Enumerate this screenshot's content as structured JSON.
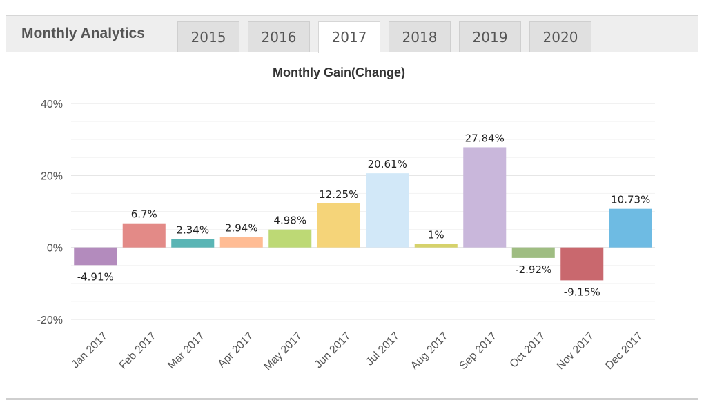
{
  "panel": {
    "title": "Monthly Analytics",
    "tabs": [
      {
        "label": "2015",
        "active": false
      },
      {
        "label": "2016",
        "active": false
      },
      {
        "label": "2017",
        "active": true
      },
      {
        "label": "2018",
        "active": false
      },
      {
        "label": "2019",
        "active": false
      },
      {
        "label": "2020",
        "active": false
      }
    ]
  },
  "chart_data": {
    "type": "bar",
    "title": "Monthly Gain(Change)",
    "xlabel": "",
    "ylabel": "",
    "ylim": [
      -20,
      40
    ],
    "yticks": [
      -20,
      0,
      20,
      40
    ],
    "ytick_labels": [
      "-20%",
      "0%",
      "20%",
      "40%"
    ],
    "grid": true,
    "categories": [
      "Jan 2017",
      "Feb 2017",
      "Mar 2017",
      "Apr 2017",
      "May 2017",
      "Jun 2017",
      "Jul 2017",
      "Aug 2017",
      "Sep 2017",
      "Oct 2017",
      "Nov 2017",
      "Dec 2017"
    ],
    "values": [
      -4.91,
      6.7,
      2.34,
      2.94,
      4.98,
      12.25,
      20.61,
      1,
      27.84,
      -2.92,
      -9.15,
      10.73
    ],
    "data_labels": [
      "-4.91%",
      "6.7%",
      "2.34%",
      "2.94%",
      "4.98%",
      "12.25%",
      "20.61%",
      "1%",
      "27.84%",
      "-2.92%",
      "-9.15%",
      "10.73%"
    ],
    "colors": [
      "#b38bbd",
      "#e38a87",
      "#5ab5b5",
      "#ffbc94",
      "#bdd975",
      "#f5d479",
      "#d2e8f8",
      "#d6d26b",
      "#c9b7db",
      "#9fbd82",
      "#c9686e",
      "#6ebbe3"
    ]
  }
}
